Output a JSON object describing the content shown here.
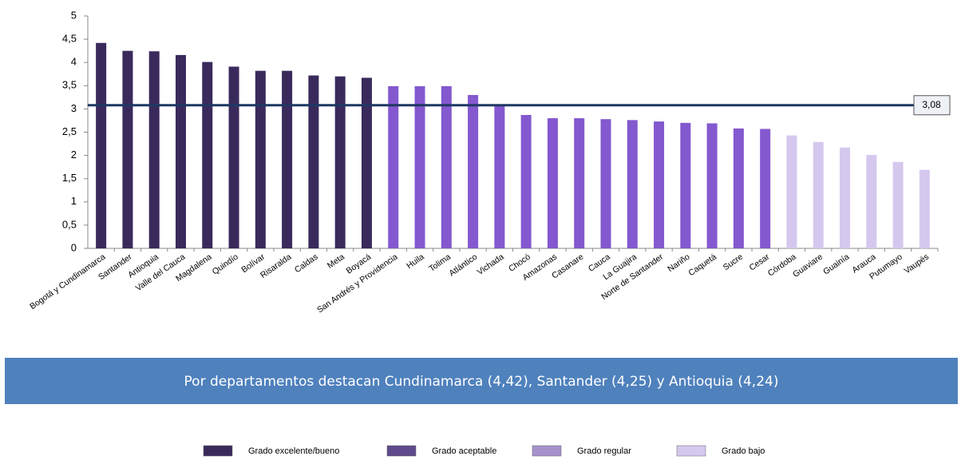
{
  "chart_data": {
    "type": "bar",
    "categories": [
      "Bogotá y Cundinamarca",
      "Santander",
      "Antioquia",
      "Valle del Cauca",
      "Magdalena",
      "Quindío",
      "Bolívar",
      "Risaralda",
      "Caldas",
      "Meta",
      "Boyacá",
      "San Andrés y Providencia",
      "Huila",
      "Tolima",
      "Atlántico",
      "Vichada",
      "Chocó",
      "Amazonas",
      "Casanare",
      "Cauca",
      "La Guajira",
      "Norte de Santander",
      "Nariño",
      "Caquetá",
      "Sucre",
      "Cesar",
      "Córdoba",
      "Guaviare",
      "Guainía",
      "Arauca",
      "Putumayo",
      "Vaupés"
    ],
    "values": [
      4.42,
      4.25,
      4.24,
      4.16,
      4.01,
      3.91,
      3.82,
      3.82,
      3.72,
      3.7,
      3.67,
      3.49,
      3.49,
      3.49,
      3.3,
      3.07,
      2.87,
      2.8,
      2.8,
      2.78,
      2.76,
      2.73,
      2.7,
      2.69,
      2.58,
      2.57,
      2.43,
      2.29,
      2.17,
      2.01,
      1.86,
      1.69
    ],
    "colors": [
      "#3a2a5c",
      "#3a2a5c",
      "#3a2a5c",
      "#3a2a5c",
      "#3a2a5c",
      "#3a2a5c",
      "#3a2a5c",
      "#3a2a5c",
      "#3a2a5c",
      "#3a2a5c",
      "#3a2a5c",
      "#8458cf",
      "#8458cf",
      "#8458cf",
      "#8458cf",
      "#8458cf",
      "#8458cf",
      "#8458cf",
      "#8458cf",
      "#8458cf",
      "#8458cf",
      "#8458cf",
      "#8458cf",
      "#8458cf",
      "#8458cf",
      "#8458cf",
      "#d5c8ee",
      "#d5c8ee",
      "#d5c8ee",
      "#d5c8ee",
      "#d5c8ee",
      "#d5c8ee"
    ],
    "ylim": [
      0,
      5
    ],
    "yticks": [
      0,
      {
        "value": 0.5,
        "label": "0,5"
      },
      1,
      {
        "value": 1.5,
        "label": "1,5"
      },
      2,
      {
        "value": 2.5,
        "label": "2,5"
      },
      3,
      {
        "value": 3.5,
        "label": "3,5"
      },
      4,
      {
        "value": 4.5,
        "label": "4,5"
      },
      5
    ],
    "reference_line": {
      "value": 3.08,
      "label": "3,08",
      "color": "#1f3864"
    },
    "banner": "Por departamentos destacan Cundinamarca (4,42), Santander (4,25) y Antioquia (4,24)",
    "legend": [
      {
        "name": "Grado excelente/bueno",
        "color": "#3a2a5c"
      },
      {
        "name": "Grado aceptable",
        "color": "#5e4a8c"
      },
      {
        "name": "Grado regular",
        "color": "#a592cc"
      },
      {
        "name": "Grado bajo",
        "color": "#d5c8ee"
      }
    ]
  }
}
